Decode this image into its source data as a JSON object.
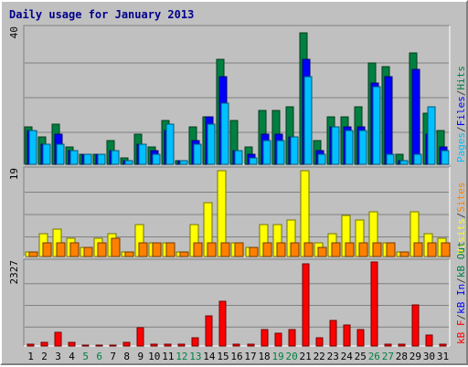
{
  "chart_data": {
    "type": "bar",
    "title": "Daily usage for January 2013",
    "categories": [
      "1",
      "2",
      "3",
      "4",
      "5",
      "6",
      "7",
      "8",
      "9",
      "10",
      "11",
      "12",
      "13",
      "14",
      "15",
      "16",
      "17",
      "18",
      "19",
      "20",
      "21",
      "22",
      "23",
      "24",
      "25",
      "26",
      "27",
      "28",
      "29",
      "30",
      "31"
    ],
    "weekend_days": [
      "5",
      "6",
      "12",
      "13",
      "19",
      "20",
      "26",
      "27"
    ],
    "grid": true,
    "panels": [
      {
        "name": "hits-files-pages",
        "ymax_label": "40",
        "ylim": [
          0,
          40
        ],
        "legend": [
          {
            "label": "Pages",
            "color": "#00c0ff"
          },
          {
            "label": "/",
            "color": "#404040"
          },
          {
            "label": "Files",
            "color": "#0000ff"
          },
          {
            "label": "/",
            "color": "#404040"
          },
          {
            "label": "Hits",
            "color": "#008040"
          }
        ],
        "series": [
          {
            "name": "Hits",
            "color": "#008040",
            "values": [
              11,
              8,
              12,
              5,
              3,
              3,
              7,
              2,
              9,
              5,
              13,
              1,
              11,
              14,
              31,
              13,
              5,
              16,
              16,
              17,
              39,
              7,
              14,
              14,
              17,
              30,
              29,
              3,
              33,
              15,
              10
            ]
          },
          {
            "name": "Files",
            "color": "#0000ff",
            "values": [
              10,
              6,
              9,
              4,
              3,
              3,
              4,
              1,
              6,
              4,
              10,
              1,
              7,
              14,
              26,
              4,
              3,
              9,
              9,
              8,
              31,
              4,
              11,
              11,
              11,
              24,
              26,
              1,
              28,
              9,
              5
            ]
          },
          {
            "name": "Pages",
            "color": "#00c0ff",
            "values": [
              10,
              6,
              6,
              4,
              3,
              3,
              4,
              1,
              6,
              3,
              12,
              1,
              6,
              12,
              18,
              4,
              2,
              7,
              7,
              8,
              26,
              3,
              11,
              10,
              10,
              23,
              3,
              1,
              3,
              17,
              4
            ]
          }
        ]
      },
      {
        "name": "visits-sites",
        "ymax_label": "19",
        "ylim": [
          0,
          19
        ],
        "legend": [
          {
            "label": "Visits",
            "color": "#ffff00"
          },
          {
            "label": "/",
            "color": "#404040"
          },
          {
            "label": "Sites",
            "color": "#ff8000"
          }
        ],
        "series": [
          {
            "name": "Visits",
            "color": "#ffff00",
            "values": [
              1,
              5,
              6,
              4,
              2,
              4,
              5,
              1,
              7,
              3,
              3,
              1,
              7,
              12,
              19,
              3,
              2,
              7,
              7,
              8,
              19,
              3,
              5,
              9,
              8,
              10,
              3,
              1,
              10,
              5,
              4
            ]
          },
          {
            "name": "Sites",
            "color": "#ff8000",
            "values": [
              1,
              3,
              3,
              3,
              2,
              3,
              4,
              1,
              3,
              3,
              3,
              1,
              3,
              3,
              3,
              3,
              2,
              3,
              3,
              3,
              3,
              2,
              3,
              3,
              3,
              3,
              3,
              1,
              3,
              3,
              3
            ]
          }
        ]
      },
      {
        "name": "kbytes",
        "ymax_label": "2327",
        "ylim": [
          0,
          2327
        ],
        "legend": [
          {
            "label": "kB F",
            "color": "#ff0000"
          },
          {
            "label": "/",
            "color": "#404040"
          },
          {
            "label": "kB In",
            "color": "#0000ff"
          },
          {
            "label": "/",
            "color": "#404040"
          },
          {
            "label": "kB Out",
            "color": "#008040"
          }
        ],
        "series": [
          {
            "name": "kB F",
            "color": "#ff0000",
            "values": [
              40,
              90,
              380,
              110,
              20,
              20,
              20,
              100,
              520,
              40,
              40,
              40,
              220,
              850,
              1260,
              40,
              40,
              460,
              370,
              470,
              2300,
              230,
              720,
              600,
              460,
              2350,
              50,
              40,
              1160,
              300,
              40
            ]
          }
        ]
      }
    ]
  }
}
